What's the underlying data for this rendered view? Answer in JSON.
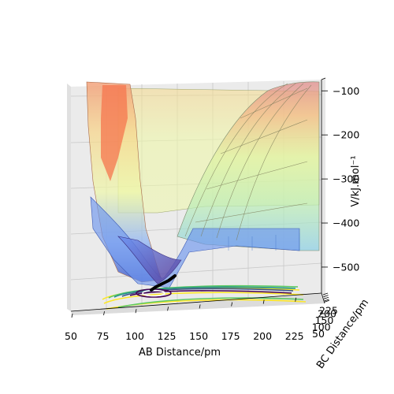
{
  "chart_data": {
    "type": "surface",
    "title": "",
    "xlabel": "AB Distance/pm",
    "ylabel": "BC Distance/pm",
    "zlabel": "V/kJ.mol⁻¹",
    "x_ticks": [
      50,
      75,
      100,
      125,
      150,
      175,
      200,
      225
    ],
    "x_tick_labels": [
      "50",
      "75",
      "100",
      "125",
      "150",
      "175",
      "200",
      "225"
    ],
    "y_ticks": [
      50,
      100,
      150,
      200,
      225
    ],
    "y_tick_labels": [
      "50",
      "100",
      "150",
      "200",
      "225"
    ],
    "z_ticks": [
      -100,
      -200,
      -300,
      -400,
      -500
    ],
    "z_tick_labels": [
      "−100",
      "−200",
      "−300",
      "−400",
      "−500"
    ],
    "xlim": [
      50,
      240
    ],
    "ylim": [
      50,
      240
    ],
    "zlim": [
      -560,
      -70
    ],
    "grid": true,
    "surface": {
      "minimum_energy": -500,
      "asymptote_energy": -450,
      "top_energy": -90,
      "potential_minimum_at": [
        75,
        75
      ],
      "contour_levels": [
        -100,
        -200,
        -300,
        -400,
        -450
      ],
      "colormap_surface": [
        "#3b4cc0",
        "#7aa6f8",
        "#bfe7c8",
        "#eef7a8",
        "#f6d98a",
        "#f4a582",
        "#d6604d"
      ],
      "colormap_floor": [
        "#440154",
        "#3b528b",
        "#21918c",
        "#5ec962",
        "#fde725"
      ]
    },
    "trajectory": {
      "description": "black reaction path near the potential minimum",
      "color": "#000000"
    }
  }
}
